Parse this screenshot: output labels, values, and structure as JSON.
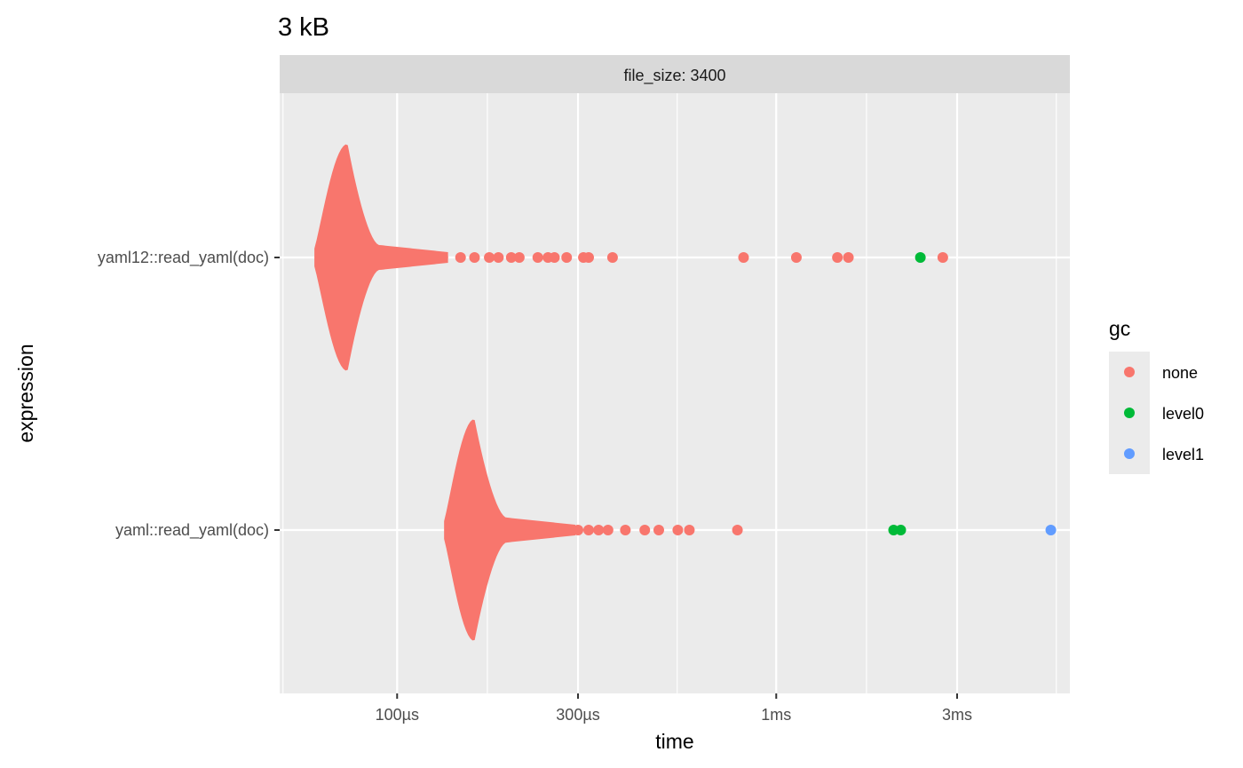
{
  "chart_data": {
    "type": "scatter",
    "title": "3 kB",
    "facet_label": "file_size: 3400",
    "xlabel": "time",
    "ylabel": "expression",
    "x_scale": "log10",
    "x_unit": "seconds",
    "xlim": [
      4.9e-05,
      0.00595
    ],
    "x_ticks": [
      {
        "value": 0.0001,
        "label": "100µs"
      },
      {
        "value": 0.0003,
        "label": "300µs"
      },
      {
        "value": 0.001,
        "label": "1ms"
      },
      {
        "value": 0.003,
        "label": "3ms"
      }
    ],
    "categories": [
      "yaml12::read_yaml(doc)",
      "yaml::read_yaml(doc)"
    ],
    "grid": true,
    "legend": {
      "title": "gc",
      "position": "right",
      "entries": [
        {
          "name": "none",
          "color": "#F8766D"
        },
        {
          "name": "level0",
          "color": "#00BA38"
        },
        {
          "name": "level1",
          "color": "#619CFF"
        }
      ]
    },
    "series": [
      {
        "category": "yaml12::read_yaml(doc)",
        "distribution": {
          "min": 6.05e-05,
          "mode": 7.4e-05,
          "bulk_max": 9e-05
        },
        "outliers": [
          {
            "x": 0.000106,
            "gc": "none"
          },
          {
            "x": 0.000118,
            "gc": "none"
          },
          {
            "x": 0.000132,
            "gc": "none"
          },
          {
            "x": 0.000147,
            "gc": "none"
          },
          {
            "x": 0.00016,
            "gc": "none"
          },
          {
            "x": 0.000175,
            "gc": "none"
          },
          {
            "x": 0.000185,
            "gc": "none"
          },
          {
            "x": 0.0002,
            "gc": "none"
          },
          {
            "x": 0.00021,
            "gc": "none"
          },
          {
            "x": 0.000235,
            "gc": "none"
          },
          {
            "x": 0.00025,
            "gc": "none"
          },
          {
            "x": 0.00026,
            "gc": "none"
          },
          {
            "x": 0.00028,
            "gc": "none"
          },
          {
            "x": 0.00031,
            "gc": "none"
          },
          {
            "x": 0.00032,
            "gc": "none"
          },
          {
            "x": 0.00037,
            "gc": "none"
          },
          {
            "x": 0.00082,
            "gc": "none"
          },
          {
            "x": 0.00113,
            "gc": "none"
          },
          {
            "x": 0.00145,
            "gc": "none"
          },
          {
            "x": 0.00155,
            "gc": "none"
          },
          {
            "x": 0.0024,
            "gc": "level0"
          },
          {
            "x": 0.00275,
            "gc": "none"
          }
        ]
      },
      {
        "category": "yaml::read_yaml(doc)",
        "distribution": {
          "min": 0.000133,
          "mode": 0.00016,
          "bulk_max": 0.000195
        },
        "outliers": [
          {
            "x": 0.00022,
            "gc": "none"
          },
          {
            "x": 0.00024,
            "gc": "none"
          },
          {
            "x": 0.00026,
            "gc": "none"
          },
          {
            "x": 0.00028,
            "gc": "none"
          },
          {
            "x": 0.0003,
            "gc": "none"
          },
          {
            "x": 0.00032,
            "gc": "none"
          },
          {
            "x": 0.00034,
            "gc": "none"
          },
          {
            "x": 0.00036,
            "gc": "none"
          },
          {
            "x": 0.0004,
            "gc": "none"
          },
          {
            "x": 0.00045,
            "gc": "none"
          },
          {
            "x": 0.00049,
            "gc": "none"
          },
          {
            "x": 0.00055,
            "gc": "none"
          },
          {
            "x": 0.00059,
            "gc": "none"
          },
          {
            "x": 0.00079,
            "gc": "none"
          },
          {
            "x": 0.00204,
            "gc": "level0"
          },
          {
            "x": 0.00213,
            "gc": "level0"
          },
          {
            "x": 0.0053,
            "gc": "level1"
          }
        ]
      }
    ]
  }
}
